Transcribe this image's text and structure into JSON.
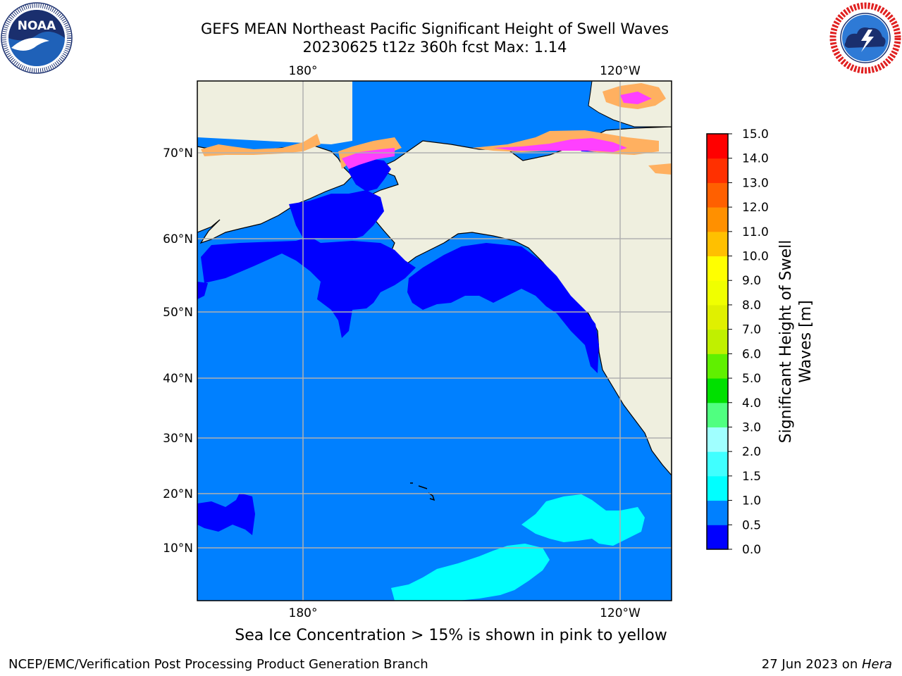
{
  "header": {
    "title_line1": "GEFS MEAN Northeast Pacific Significant Height of Swell Waves",
    "title_line2": "20230625 t12z 360h fcst   Max: 1.14"
  },
  "logos": {
    "left": "NOAA",
    "right": "NATIONAL WEATHER SERVICE"
  },
  "map": {
    "lon_labels_top": [
      "180°",
      "120°W"
    ],
    "lon_labels_bottom": [
      "180°",
      "120°W"
    ],
    "lat_labels": [
      "70°N",
      "60°N",
      "50°N",
      "40°N",
      "30°N",
      "20°N",
      "10°N"
    ],
    "colors": {
      "land": "#efefdf",
      "ocean_main": "#0080ff",
      "ocean_low": "#0000ff",
      "ocean_mid": "#00ffff",
      "ice_pink": "#ff40ff",
      "ice_orange": "#ffb060",
      "grid": "#b0b0b0"
    }
  },
  "colorbar": {
    "label_line1": "Significant Height of Swell",
    "label_line2": "Waves [m]",
    "ticks": [
      "0.0",
      "0.5",
      "1.0",
      "1.5",
      "2.0",
      "3.0",
      "4.0",
      "5.0",
      "6.0",
      "7.0",
      "8.0",
      "9.0",
      "10.0",
      "11.0",
      "12.0",
      "13.0",
      "14.0",
      "15.0"
    ],
    "colors": [
      "#0000ff",
      "#0080ff",
      "#00ffff",
      "#40ffff",
      "#a0ffff",
      "#50ff80",
      "#00e000",
      "#60f000",
      "#c0f000",
      "#e0f000",
      "#f0ff00",
      "#ffff00",
      "#ffc000",
      "#ff9000",
      "#ff6000",
      "#ff3000",
      "#ff0000"
    ]
  },
  "footer": {
    "ice_note": "Sea Ice Concentration > 15% is shown in pink to yellow",
    "left": "NCEP/EMC/Verification Post Processing Product Generation Branch",
    "right_prefix": "27 Jun 2023 on ",
    "right_machine": "Hera"
  }
}
